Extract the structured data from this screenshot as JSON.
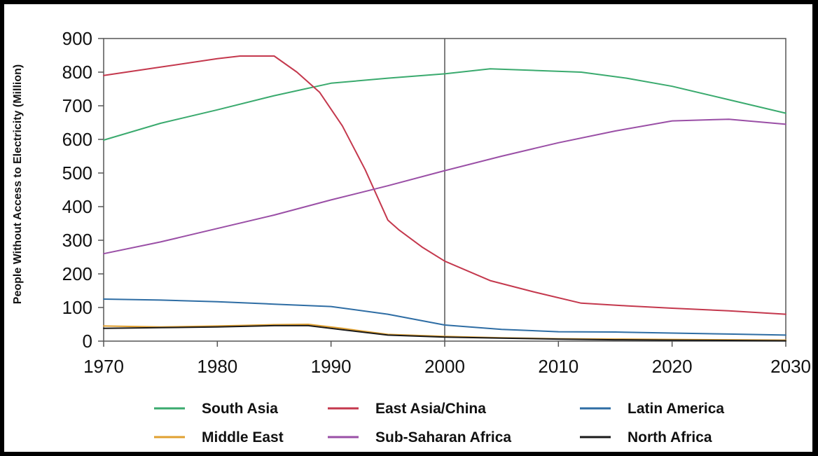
{
  "chart_data": {
    "type": "line",
    "title": "",
    "xlabel": "",
    "ylabel": "People Without Access to Electricity (Million)",
    "xlim": [
      1970,
      2030
    ],
    "ylim": [
      0,
      900
    ],
    "x_ticks": [
      "1970",
      "1980",
      "1990",
      "2000",
      "2010",
      "2020",
      "2030"
    ],
    "y_ticks": [
      "0",
      "100",
      "200",
      "300",
      "400",
      "500",
      "600",
      "700",
      "800",
      "900"
    ],
    "reference_line_x": 2000,
    "grid": false,
    "legend_position": "bottom",
    "series": [
      {
        "name": "South Asia",
        "color": "#3aaa6e",
        "x": [
          1970,
          1975,
          1980,
          1985,
          1990,
          1995,
          2000,
          2004,
          2008,
          2012,
          2016,
          2020,
          2025,
          2030
        ],
        "y": [
          598,
          648,
          688,
          730,
          767,
          782,
          795,
          810,
          805,
          800,
          782,
          758,
          718,
          678
        ]
      },
      {
        "name": "East Asia/China",
        "color": "#c4384d",
        "x": [
          1970,
          1975,
          1980,
          1982,
          1985,
          1987,
          1989,
          1991,
          1993,
          1995,
          1996,
          1998,
          2000,
          2004,
          2008,
          2012,
          2016,
          2020,
          2025,
          2030
        ],
        "y": [
          790,
          815,
          840,
          848,
          848,
          800,
          740,
          640,
          510,
          360,
          330,
          280,
          238,
          180,
          145,
          113,
          105,
          98,
          90,
          80
        ]
      },
      {
        "name": "Latin America",
        "color": "#2e6da4",
        "x": [
          1970,
          1975,
          1980,
          1985,
          1990,
          1995,
          2000,
          2005,
          2010,
          2015,
          2020,
          2025,
          2030
        ],
        "y": [
          125,
          122,
          117,
          110,
          103,
          80,
          48,
          35,
          28,
          27,
          24,
          21,
          18
        ]
      },
      {
        "name": "Middle East",
        "color": "#e0a030",
        "x": [
          1970,
          1975,
          1980,
          1985,
          1988,
          1991,
          1995,
          2000,
          2005,
          2010,
          2015,
          2020,
          2025,
          2030
        ],
        "y": [
          45,
          42,
          45,
          49,
          50,
          38,
          20,
          14,
          10,
          7,
          6,
          5,
          4,
          3
        ]
      },
      {
        "name": "Sub-Saharan Africa",
        "color": "#9a4fa6",
        "x": [
          1970,
          1975,
          1980,
          1985,
          1990,
          1995,
          2000,
          2005,
          2010,
          2015,
          2020,
          2025,
          2030
        ],
        "y": [
          260,
          295,
          335,
          375,
          420,
          462,
          507,
          550,
          590,
          625,
          655,
          660,
          645
        ]
      },
      {
        "name": "North Africa",
        "color": "#1a1a1a",
        "x": [
          1970,
          1975,
          1980,
          1985,
          1988,
          1991,
          1995,
          2000,
          2005,
          2010,
          2015,
          2020,
          2025,
          2030
        ],
        "y": [
          38,
          40,
          42,
          46,
          46,
          34,
          18,
          12,
          9,
          6,
          4,
          3,
          2,
          1
        ]
      }
    ]
  }
}
